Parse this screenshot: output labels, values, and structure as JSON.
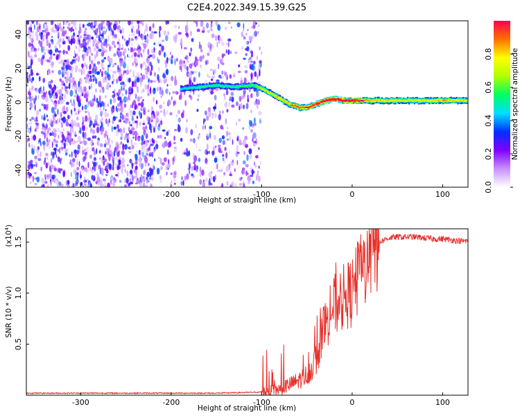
{
  "title": "C2E4.2022.349.15.39.G25",
  "chart_data": [
    {
      "type": "heatmap",
      "xlabel": "Height of straight line (km)",
      "ylabel": "Frequency (Hz)",
      "xlim": [
        -360,
        128
      ],
      "ylim": [
        -50,
        48
      ],
      "xticks": [
        -300,
        -200,
        -100,
        0,
        100
      ],
      "yticks": [
        -40,
        -20,
        0,
        20,
        40
      ],
      "colorbar": {
        "label": "Normalized spectral amplitude",
        "range": [
          0,
          1
        ],
        "ticks": [
          "0.0",
          "0.2",
          "0.4",
          "0.6",
          "0.8"
        ],
        "colors": [
          "#ffffff",
          "#c890ff",
          "#8000ff",
          "#0030ff",
          "#00e0ff",
          "#00ff60",
          "#b0ff00",
          "#ffff00",
          "#ff7000",
          "#ff0050"
        ]
      },
      "noise_region": {
        "x_range": [
          -360,
          -100
        ],
        "y_range": [
          -50,
          48
        ]
      },
      "ridge": {
        "x": [
          -190,
          -170,
          -150,
          -130,
          -110,
          -100,
          -90,
          -80,
          -70,
          -60,
          -50,
          -40,
          -30,
          -20,
          -10,
          0,
          20,
          40,
          60,
          80,
          100,
          128
        ],
        "freq": [
          8,
          9,
          10,
          9,
          10,
          8,
          5,
          2,
          -1,
          -3,
          -3,
          -1,
          1,
          2,
          1,
          1,
          1,
          1,
          1,
          1,
          1,
          1
        ],
        "amplitude": [
          0.35,
          0.4,
          0.4,
          0.4,
          0.45,
          0.55,
          0.6,
          0.65,
          0.7,
          0.75,
          0.8,
          0.85,
          0.9,
          0.95,
          0.95,
          0.9,
          0.7,
          0.6,
          0.6,
          0.6,
          0.7,
          0.6
        ]
      }
    },
    {
      "type": "line",
      "xlabel": "Height of straight line (km)",
      "ylabel": "SNR (10 * v/v)",
      "multiplier": "(x10",
      "multiplier_exp": "4",
      "multiplier_close": ")",
      "xlim": [
        -360,
        128
      ],
      "ylim": [
        0,
        1.63
      ],
      "xticks": [
        -300,
        -200,
        -100,
        0,
        100
      ],
      "yticks": [
        0.5,
        1.0,
        1.5
      ],
      "ytick_labels": [
        "0.5",
        "1.0",
        "1.5"
      ],
      "color": "#e8302a",
      "series": [
        {
          "x": [
            -360,
            -300,
            -200,
            -150,
            -100,
            -90,
            -80,
            -70,
            -60,
            -50,
            -45,
            -40,
            -35,
            -30,
            -25,
            -20,
            -15,
            -10,
            -5,
            0,
            5,
            10,
            15,
            20,
            25,
            30,
            40,
            50,
            60,
            70,
            80,
            90,
            100,
            110,
            120,
            128
          ],
          "y": [
            0.02,
            0.02,
            0.02,
            0.02,
            0.03,
            0.04,
            0.06,
            0.1,
            0.14,
            0.2,
            0.26,
            0.35,
            0.5,
            0.68,
            0.8,
            0.88,
            0.9,
            0.95,
            0.98,
            1.0,
            1.1,
            1.2,
            1.3,
            1.38,
            1.45,
            1.5,
            1.54,
            1.55,
            1.55,
            1.55,
            1.54,
            1.53,
            1.53,
            1.52,
            1.51,
            1.51
          ]
        }
      ]
    }
  ]
}
